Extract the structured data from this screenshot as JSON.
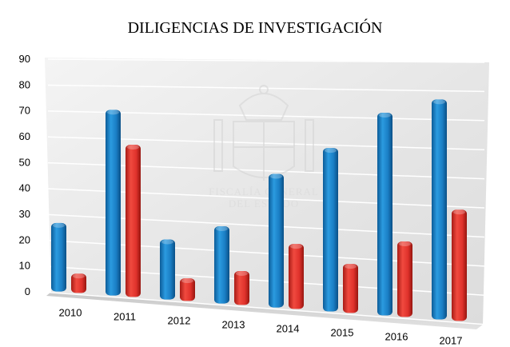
{
  "chart_data": {
    "type": "bar",
    "title": "DILIGENCIAS DE INVESTIGACIÓN",
    "categories": [
      "2010",
      "2011",
      "2012",
      "2013",
      "2014",
      "2015",
      "2016",
      "2017"
    ],
    "series": [
      {
        "color": "#1a7ec4",
        "values": [
          27,
          71,
          23,
          29,
          49,
          59,
          72,
          77
        ]
      },
      {
        "color": "#e0322c",
        "values": [
          8,
          58,
          9,
          13,
          24,
          18,
          27,
          39
        ]
      }
    ],
    "ylim": [
      0,
      90
    ],
    "yticks": [
      "0",
      "10",
      "20",
      "30",
      "40",
      "50",
      "60",
      "70",
      "80",
      "90"
    ],
    "xlabel": "",
    "ylabel": "",
    "grid": true,
    "legend": "none",
    "watermark": {
      "line1": "FISCALÍA GENERAL",
      "line2": "DEL ESTADO"
    }
  }
}
